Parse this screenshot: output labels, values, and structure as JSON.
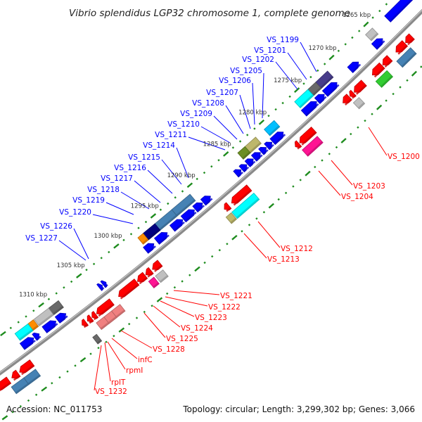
{
  "title": "Vibrio splendidus LGP32 chromosome 1, complete genome",
  "footer": {
    "accession": "Accession: NC_011753",
    "summary": "Topology: circular; Length: 3,299,302 bp; Genes: 3,066"
  },
  "colors": {
    "backbone": "#8a8a8a",
    "tick": "#1e8c1e",
    "plus_label": "#0000ff",
    "minus_label": "#ff0000"
  },
  "ruler": {
    "unit": "kbp",
    "labels": [
      "1265 kbp",
      "1270 kbp",
      "1275 kbp",
      "1280 kbp",
      "1285 kbp",
      "1290 kbp",
      "1295 kbp",
      "1300 kbp",
      "1305 kbp",
      "1310 kbp"
    ],
    "label_positions_kbp": [
      1265,
      1270,
      1275,
      1280,
      1285,
      1290,
      1295,
      1300,
      1305,
      1310
    ],
    "range_kbp": [
      1258,
      1322
    ],
    "minor_step_kbp": 1,
    "major_step_kbp": 5
  },
  "labels": {
    "plus": [
      "VS_1199",
      "VS_1201",
      "VS_1202",
      "VS_1205",
      "VS_1206",
      "VS_1207",
      "VS_1208",
      "VS_1209",
      "VS_1210",
      "VS_1211",
      "VS_1214",
      "VS_1215",
      "VS_1216",
      "VS_1217",
      "VS_1218",
      "VS_1219",
      "VS_1220",
      "VS_1226",
      "VS_1227"
    ],
    "minus": [
      "VS_1200",
      "VS_1203",
      "VS_1204",
      "VS_1212",
      "VS_1213",
      "VS_1221",
      "VS_1222",
      "VS_1223",
      "VS_1224",
      "VS_1225",
      "VS_1228",
      "infC",
      "rpmI",
      "rplT",
      "VS_1232"
    ]
  },
  "features": [
    {
      "start": 1259.5,
      "end": 1263.0,
      "strand": "+",
      "lane": 2,
      "shape": "box",
      "color": "#0000ff"
    },
    {
      "start": 1264.8,
      "end": 1265.8,
      "strand": "+",
      "lane": 2,
      "shape": "box",
      "color": "#c0c0c0"
    },
    {
      "start": 1271.3,
      "end": 1273.0,
      "strand": "+",
      "lane": 2,
      "shape": "box",
      "color": "#483d8b"
    },
    {
      "start": 1273.0,
      "end": 1274.1,
      "strand": "+",
      "lane": 2,
      "shape": "box",
      "color": "#696969"
    },
    {
      "start": 1274.1,
      "end": 1276.0,
      "strand": "+",
      "lane": 2,
      "shape": "box",
      "color": "#00ffff"
    },
    {
      "start": 1278.9,
      "end": 1280.3,
      "strand": "+",
      "lane": 2,
      "shape": "box",
      "color": "#00bfff"
    },
    {
      "start": 1281.5,
      "end": 1283.0,
      "strand": "+",
      "lane": 2,
      "shape": "box",
      "color": "#bdb76b"
    },
    {
      "start": 1283.0,
      "end": 1284.0,
      "strand": "+",
      "lane": 2,
      "shape": "box",
      "color": "#6b8e23"
    },
    {
      "start": 1290.6,
      "end": 1293.1,
      "strand": "+",
      "lane": 2,
      "shape": "box",
      "color": "#4682b4"
    },
    {
      "start": 1293.1,
      "end": 1295.4,
      "strand": "+",
      "lane": 2,
      "shape": "box",
      "color": "#4682b4"
    },
    {
      "start": 1295.4,
      "end": 1297.0,
      "strand": "+",
      "lane": 2,
      "shape": "box",
      "color": "#000080"
    },
    {
      "start": 1297.0,
      "end": 1297.7,
      "strand": "+",
      "lane": 2,
      "shape": "box",
      "color": "#ff8c00"
    },
    {
      "start": 1308.3,
      "end": 1309.6,
      "strand": "+",
      "lane": 2,
      "shape": "box",
      "color": "#696969"
    },
    {
      "start": 1309.6,
      "end": 1311.5,
      "strand": "+",
      "lane": 2,
      "shape": "box",
      "color": "#c0c0c0"
    },
    {
      "start": 1311.6,
      "end": 1312.3,
      "strand": "+",
      "lane": 2,
      "shape": "box",
      "color": "#ff8c00"
    },
    {
      "start": 1312.3,
      "end": 1314.0,
      "strand": "+",
      "lane": 2,
      "shape": "box",
      "color": "#00ffff"
    },
    {
      "start": 1264.8,
      "end": 1266.0,
      "strand": "+",
      "lane": 1,
      "shape": "arrow",
      "color": "#0000ff"
    },
    {
      "start": 1268.3,
      "end": 1269.5,
      "strand": "+",
      "lane": 1,
      "shape": "arrow",
      "color": "#0000ff"
    },
    {
      "start": 1271.4,
      "end": 1273.1,
      "strand": "+",
      "lane": 1,
      "shape": "arrow",
      "color": "#0000ff"
    },
    {
      "start": 1273.2,
      "end": 1274.2,
      "strand": "+",
      "lane": 1,
      "shape": "arrow",
      "color": "#0000ff"
    },
    {
      "start": 1274.3,
      "end": 1276.1,
      "strand": "+",
      "lane": 1,
      "shape": "arrow",
      "color": "#0000ff"
    },
    {
      "start": 1279.0,
      "end": 1280.5,
      "strand": "+",
      "lane": 1,
      "shape": "arrow",
      "color": "#0000ff"
    },
    {
      "start": 1280.6,
      "end": 1281.3,
      "strand": "+",
      "lane": 1,
      "shape": "arrow",
      "color": "#0000ff"
    },
    {
      "start": 1281.4,
      "end": 1282.1,
      "strand": "+",
      "lane": 1,
      "shape": "arrow",
      "color": "#0000ff"
    },
    {
      "start": 1282.2,
      "end": 1283.1,
      "strand": "+",
      "lane": 1,
      "shape": "arrow",
      "color": "#0000ff"
    },
    {
      "start": 1283.2,
      "end": 1284.0,
      "strand": "+",
      "lane": 1,
      "shape": "arrow",
      "color": "#0000ff"
    },
    {
      "start": 1284.1,
      "end": 1284.8,
      "strand": "+",
      "lane": 1,
      "shape": "arrow",
      "color": "#0000ff"
    },
    {
      "start": 1284.9,
      "end": 1285.6,
      "strand": "+",
      "lane": 1,
      "shape": "arrow",
      "color": "#0000ff"
    },
    {
      "start": 1289.1,
      "end": 1290.1,
      "strand": "+",
      "lane": 1,
      "shape": "arrow",
      "color": "#0000ff"
    },
    {
      "start": 1290.2,
      "end": 1291.2,
      "strand": "+",
      "lane": 1,
      "shape": "arrow",
      "color": "#0000ff"
    },
    {
      "start": 1291.3,
      "end": 1292.8,
      "strand": "+",
      "lane": 1,
      "shape": "arrow",
      "color": "#0000ff"
    },
    {
      "start": 1292.9,
      "end": 1294.3,
      "strand": "+",
      "lane": 1,
      "shape": "arrow",
      "color": "#0000ff"
    },
    {
      "start": 1295.0,
      "end": 1296.4,
      "strand": "+",
      "lane": 1,
      "shape": "arrow",
      "color": "#0000ff"
    },
    {
      "start": 1296.8,
      "end": 1297.9,
      "strand": "+",
      "lane": 1,
      "shape": "arrow",
      "color": "#0000ff"
    },
    {
      "start": 1303.2,
      "end": 1303.6,
      "strand": "+",
      "lane": 1,
      "shape": "arrow",
      "color": "#0000ff"
    },
    {
      "start": 1303.7,
      "end": 1304.1,
      "strand": "+",
      "lane": 1,
      "shape": "arrow",
      "color": "#0000ff"
    },
    {
      "start": 1308.5,
      "end": 1309.6,
      "strand": "+",
      "lane": 1,
      "shape": "arrow",
      "color": "#0000ff"
    },
    {
      "start": 1309.8,
      "end": 1311.3,
      "strand": "+",
      "lane": 1,
      "shape": "arrow",
      "color": "#0000ff"
    },
    {
      "start": 1312.0,
      "end": 1312.6,
      "strand": "+",
      "lane": 1,
      "shape": "arrow",
      "color": "#0000ff"
    },
    {
      "start": 1312.7,
      "end": 1314.2,
      "strand": "+",
      "lane": 1,
      "shape": "arrow",
      "color": "#0000ff"
    },
    {
      "start": 1262.5,
      "end": 1263.4,
      "strand": "-",
      "lane": 1,
      "shape": "arrow",
      "color": "#ff0000"
    },
    {
      "start": 1263.5,
      "end": 1264.8,
      "strand": "-",
      "lane": 1,
      "shape": "arrow",
      "color": "#ff0000"
    },
    {
      "start": 1265.7,
      "end": 1266.7,
      "strand": "-",
      "lane": 1,
      "shape": "arrow",
      "color": "#ff0000"
    },
    {
      "start": 1266.8,
      "end": 1268.2,
      "strand": "-",
      "lane": 1,
      "shape": "arrow",
      "color": "#ff0000"
    },
    {
      "start": 1269.4,
      "end": 1270.8,
      "strand": "-",
      "lane": 1,
      "shape": "arrow",
      "color": "#ff0000"
    },
    {
      "start": 1270.9,
      "end": 1271.4,
      "strand": "-",
      "lane": 1,
      "shape": "arrow",
      "color": "#ff0000"
    },
    {
      "start": 1271.5,
      "end": 1272.4,
      "strand": "-",
      "lane": 1,
      "shape": "arrow",
      "color": "#ff0000"
    },
    {
      "start": 1276.5,
      "end": 1278.5,
      "strand": "-",
      "lane": 1,
      "shape": "arrow",
      "color": "#ff0000"
    },
    {
      "start": 1278.6,
      "end": 1279.1,
      "strand": "-",
      "lane": 1,
      "shape": "arrow",
      "color": "#ff0000"
    },
    {
      "start": 1285.5,
      "end": 1287.9,
      "strand": "-",
      "lane": 1,
      "shape": "arrow",
      "color": "#ff0000"
    },
    {
      "start": 1288.3,
      "end": 1288.9,
      "strand": "-",
      "lane": 1,
      "shape": "arrow",
      "color": "#ff0000"
    },
    {
      "start": 1297.6,
      "end": 1298.6,
      "strand": "-",
      "lane": 1,
      "shape": "arrow",
      "color": "#ff0000"
    },
    {
      "start": 1298.8,
      "end": 1299.5,
      "strand": "-",
      "lane": 1,
      "shape": "arrow",
      "color": "#ff0000"
    },
    {
      "start": 1299.6,
      "end": 1300.6,
      "strand": "-",
      "lane": 1,
      "shape": "arrow",
      "color": "#ff0000"
    },
    {
      "start": 1300.7,
      "end": 1303.1,
      "strand": "-",
      "lane": 1,
      "shape": "arrow",
      "color": "#ff0000"
    },
    {
      "start": 1304.0,
      "end": 1306.0,
      "strand": "-",
      "lane": 1,
      "shape": "arrow",
      "color": "#ff0000"
    },
    {
      "start": 1306.1,
      "end": 1306.6,
      "strand": "-",
      "lane": 1,
      "shape": "arrow",
      "color": "#ff0000"
    },
    {
      "start": 1306.7,
      "end": 1307.2,
      "strand": "-",
      "lane": 1,
      "shape": "arrow",
      "color": "#ff0000"
    },
    {
      "start": 1307.4,
      "end": 1307.9,
      "strand": "-",
      "lane": 1,
      "shape": "arrow",
      "color": "#ff0000"
    },
    {
      "start": 1314.4,
      "end": 1316.0,
      "strand": "-",
      "lane": 1,
      "shape": "arrow",
      "color": "#ff0000"
    },
    {
      "start": 1316.2,
      "end": 1317.0,
      "strand": "-",
      "lane": 1,
      "shape": "arrow",
      "color": "#ff0000"
    },
    {
      "start": 1317.4,
      "end": 1319.0,
      "strand": "-",
      "lane": 1,
      "shape": "arrow",
      "color": "#ff0000"
    },
    {
      "start": 1263.4,
      "end": 1265.4,
      "strand": "-",
      "lane": 2,
      "shape": "box",
      "color": "#4682b4"
    },
    {
      "start": 1266.8,
      "end": 1268.4,
      "strand": "-",
      "lane": 2,
      "shape": "box",
      "color": "#32cd32"
    },
    {
      "start": 1270.8,
      "end": 1271.6,
      "strand": "-",
      "lane": 2,
      "shape": "box",
      "color": "#c0c0c0"
    },
    {
      "start": 1276.7,
      "end": 1278.8,
      "strand": "-",
      "lane": 2,
      "shape": "box",
      "color": "#ff1493"
    },
    {
      "start": 1285.5,
      "end": 1288.5,
      "strand": "-",
      "lane": 2,
      "shape": "box",
      "color": "#00ffff"
    },
    {
      "start": 1288.6,
      "end": 1289.3,
      "strand": "-",
      "lane": 2,
      "shape": "box",
      "color": "#bdb76b"
    },
    {
      "start": 1297.8,
      "end": 1298.8,
      "strand": "-",
      "lane": 2,
      "shape": "box",
      "color": "#c0c0c0"
    },
    {
      "start": 1299.0,
      "end": 1299.7,
      "strand": "-",
      "lane": 2,
      "shape": "box",
      "color": "#ff1493"
    },
    {
      "start": 1303.5,
      "end": 1304.6,
      "strand": "-",
      "lane": 2,
      "shape": "box",
      "color": "#f08080"
    },
    {
      "start": 1304.6,
      "end": 1305.6,
      "strand": "-",
      "lane": 2,
      "shape": "box",
      "color": "#f08080"
    },
    {
      "start": 1305.6,
      "end": 1306.6,
      "strand": "-",
      "lane": 2,
      "shape": "box",
      "color": "#f08080"
    },
    {
      "start": 1307.3,
      "end": 1307.8,
      "strand": "-",
      "lane": 3,
      "shape": "box",
      "color": "#696969"
    },
    {
      "start": 1314.5,
      "end": 1316.0,
      "strand": "-",
      "lane": 2,
      "shape": "box",
      "color": "#4682b4"
    },
    {
      "start": 1316.0,
      "end": 1317.6,
      "strand": "-",
      "lane": 2,
      "shape": "box",
      "color": "#4682b4"
    }
  ]
}
